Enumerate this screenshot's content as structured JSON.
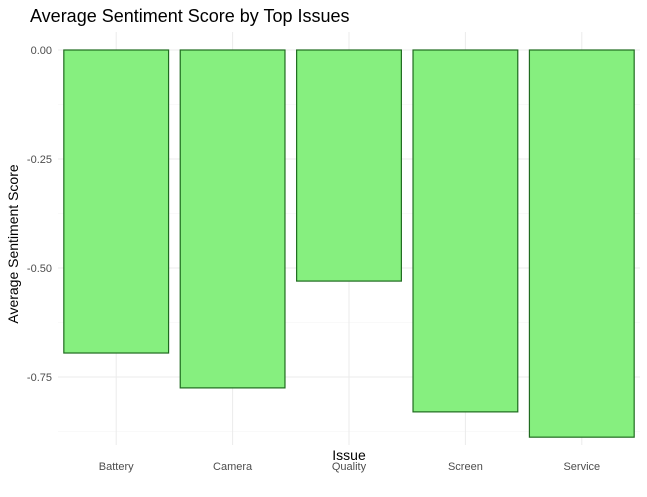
{
  "chart_data": {
    "type": "bar",
    "title": "Average Sentiment Score by Top Issues",
    "xlabel": "Issue",
    "ylabel": "Average Sentiment Score",
    "categories": [
      "Battery",
      "Camera",
      "Quality",
      "Screen",
      "Service"
    ],
    "values": [
      -0.695,
      -0.775,
      -0.53,
      -0.83,
      -0.888
    ],
    "ylim": [
      -0.876,
      0.0
    ],
    "yticks": [
      0.0,
      -0.25,
      -0.5,
      -0.75
    ],
    "ytick_labels": [
      "0.00",
      "-0.25",
      "-0.50",
      "-0.75"
    ],
    "grid": true,
    "legend": "none",
    "colors": {
      "fill": "#86ef7f",
      "stroke": "#1f6b1f"
    }
  }
}
